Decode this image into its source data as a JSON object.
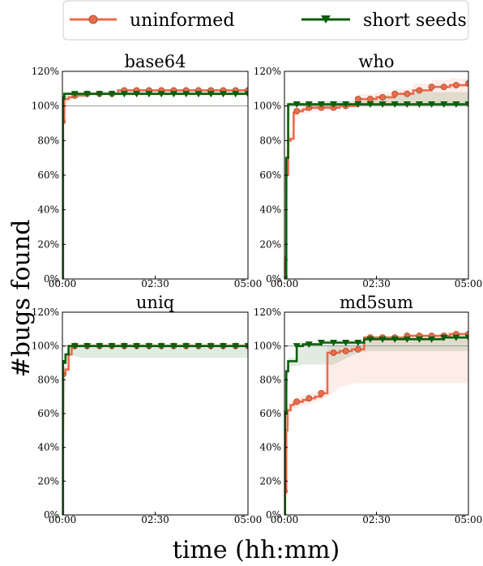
{
  "legend": {
    "placement": "top-center",
    "entries": [
      {
        "label": "uninformed",
        "color": "#ee6a4c",
        "marker": "circle"
      },
      {
        "label": "short seeds",
        "color": "#0b5e0b",
        "marker": "triangle-down"
      }
    ]
  },
  "xlabel": "time (hh:mm)",
  "ylabel": "#bugs found",
  "chart_data": [
    {
      "type": "line",
      "title": "base64",
      "xlim": [
        0,
        300
      ],
      "ylim": [
        0,
        120
      ],
      "xticks": [
        "00:00",
        "02:30",
        "05:00"
      ],
      "yticks": [
        "0%",
        "20%",
        "40%",
        "60%",
        "80%",
        "100%",
        "120%"
      ],
      "reference_line": 100,
      "series": [
        {
          "name": "uninformed",
          "color": "#ee6a4c",
          "x": [
            0,
            1,
            3,
            10,
            20,
            40,
            60,
            90,
            120,
            150,
            180,
            210,
            240,
            270,
            300
          ],
          "y": [
            0,
            91,
            104,
            105,
            106,
            107,
            107,
            109,
            109,
            109,
            109,
            109,
            109,
            109,
            109
          ],
          "band_low": [
            0,
            88,
            103,
            104,
            105,
            106,
            106,
            108,
            108,
            108,
            108,
            108,
            108,
            108,
            108
          ],
          "band_high": [
            0,
            92,
            105,
            106,
            107,
            108,
            108,
            110,
            110,
            110,
            110,
            110,
            110,
            110,
            110
          ]
        },
        {
          "name": "short seeds",
          "color": "#0b5e0b",
          "x": [
            0,
            1,
            3,
            10,
            20,
            40,
            60,
            90,
            120,
            150,
            180,
            210,
            240,
            270,
            300
          ],
          "y": [
            0,
            104,
            107,
            107,
            107,
            107,
            107,
            107,
            107,
            107,
            107,
            107,
            107,
            107,
            107
          ],
          "band_low": [
            0,
            103,
            106,
            106,
            106,
            106,
            106,
            106,
            106,
            106,
            106,
            106,
            106,
            106,
            106
          ],
          "band_high": [
            0,
            105,
            108,
            108,
            108,
            108,
            108,
            108,
            108,
            108,
            108,
            108,
            108,
            108,
            108
          ]
        }
      ]
    },
    {
      "type": "line",
      "title": "who",
      "xlim": [
        0,
        300
      ],
      "ylim": [
        0,
        120
      ],
      "xticks": [
        "00:00",
        "02:30",
        "05:00"
      ],
      "yticks": [
        "0%",
        "20%",
        "40%",
        "60%",
        "80%",
        "100%",
        "120%"
      ],
      "reference_line": 100,
      "series": [
        {
          "name": "uninformed",
          "color": "#ee6a4c",
          "x": [
            0,
            1,
            3,
            6,
            10,
            15,
            20,
            30,
            40,
            60,
            90,
            120,
            150,
            180,
            210,
            240,
            270,
            300
          ],
          "y": [
            0,
            11,
            60,
            80,
            81,
            96,
            97,
            98,
            99,
            99,
            100,
            104,
            105,
            107,
            109,
            111,
            112,
            113
          ],
          "band_low": [
            0,
            8,
            55,
            75,
            78,
            93,
            95,
            96,
            97,
            98,
            99,
            101,
            101,
            101,
            101,
            101,
            101,
            101
          ],
          "band_high": [
            0,
            14,
            65,
            85,
            84,
            98,
            99,
            100,
            101,
            101,
            102,
            107,
            108,
            110,
            113,
            115,
            116,
            117
          ]
        },
        {
          "name": "short seeds",
          "color": "#0b5e0b",
          "x": [
            0,
            1,
            3,
            6,
            10,
            20,
            40,
            60,
            90,
            120,
            150,
            180,
            210,
            240,
            270,
            300
          ],
          "y": [
            0,
            0,
            70,
            101,
            101,
            101,
            101,
            101,
            101,
            101,
            101,
            101,
            101,
            101,
            101,
            101
          ],
          "band_low": [
            0,
            0,
            65,
            100,
            100,
            100,
            100,
            100,
            100,
            100,
            100,
            100,
            100,
            100,
            100,
            100
          ],
          "band_high": [
            0,
            0,
            75,
            102,
            102,
            102,
            102,
            103,
            103,
            104,
            106,
            107,
            108,
            108,
            108,
            108
          ]
        }
      ]
    },
    {
      "type": "line",
      "title": "uniq",
      "xlim": [
        0,
        300
      ],
      "ylim": [
        0,
        120
      ],
      "xticks": [
        "00:00",
        "02:30",
        "05:00"
      ],
      "yticks": [
        "0%",
        "20%",
        "40%",
        "60%",
        "80%",
        "100%",
        "120%"
      ],
      "reference_line": 100,
      "series": [
        {
          "name": "uninformed",
          "color": "#ee6a4c",
          "x": [
            0,
            1,
            5,
            10,
            15,
            20,
            30,
            60,
            90,
            120,
            150,
            180,
            210,
            240,
            270,
            300
          ],
          "y": [
            0,
            83,
            86,
            95,
            100,
            100,
            100,
            100,
            100,
            100,
            100,
            100,
            100,
            100,
            100,
            100
          ],
          "band_low": [
            0,
            80,
            84,
            93,
            99,
            99,
            99,
            99,
            99,
            99,
            99,
            99,
            99,
            99,
            99,
            99
          ],
          "band_high": [
            0,
            85,
            88,
            97,
            101,
            101,
            101,
            101,
            101,
            101,
            101,
            101,
            101,
            101,
            101,
            101
          ]
        },
        {
          "name": "short seeds",
          "color": "#0b5e0b",
          "x": [
            0,
            1,
            5,
            10,
            20,
            30,
            60,
            90,
            120,
            150,
            180,
            210,
            240,
            270,
            300
          ],
          "y": [
            0,
            90,
            95,
            100,
            100,
            100,
            100,
            100,
            100,
            100,
            100,
            100,
            100,
            100,
            100
          ],
          "band_low": [
            0,
            88,
            93,
            95,
            93,
            93,
            93,
            93,
            93,
            93,
            93,
            93,
            93,
            93,
            93
          ],
          "band_high": [
            0,
            92,
            97,
            100,
            100,
            100,
            100,
            100,
            100,
            100,
            100,
            100,
            100,
            100,
            100
          ]
        }
      ]
    },
    {
      "type": "line",
      "title": "md5sum",
      "xlim": [
        0,
        300
      ],
      "ylim": [
        0,
        120
      ],
      "xticks": [
        "00:00",
        "02:30",
        "05:00"
      ],
      "yticks": [
        "0%",
        "20%",
        "40%",
        "60%",
        "80%",
        "100%",
        "120%"
      ],
      "reference_line": 100,
      "series": [
        {
          "name": "uninformed",
          "color": "#ee6a4c",
          "x": [
            0,
            1,
            3,
            5,
            10,
            15,
            20,
            30,
            40,
            50,
            60,
            65,
            70,
            90,
            110,
            120,
            130,
            140,
            160,
            180,
            200,
            210,
            220,
            240,
            260,
            270,
            280,
            300
          ],
          "y": [
            0,
            14,
            50,
            62,
            65,
            66,
            67,
            68,
            69,
            70,
            72,
            72,
            96,
            97,
            98,
            98,
            105,
            105,
            105,
            105,
            106,
            106,
            106,
            106,
            106,
            107,
            107,
            107
          ],
          "band_low": [
            0,
            10,
            45,
            58,
            62,
            63,
            64,
            65,
            66,
            67,
            69,
            69,
            75,
            76,
            78,
            78,
            78,
            78,
            78,
            78,
            78,
            78,
            78,
            78,
            78,
            78,
            78,
            78
          ],
          "band_high": [
            0,
            18,
            55,
            66,
            68,
            69,
            70,
            71,
            72,
            73,
            75,
            75,
            100,
            100,
            100,
            100,
            106,
            106,
            106,
            106,
            107,
            107,
            107,
            107,
            108,
            108,
            108,
            108
          ]
        },
        {
          "name": "short seeds",
          "color": "#0b5e0b",
          "x": [
            0,
            1,
            3,
            6,
            10,
            15,
            20,
            30,
            40,
            60,
            80,
            100,
            120,
            130,
            140,
            160,
            180,
            200,
            220,
            240,
            260,
            280,
            300
          ],
          "y": [
            0,
            60,
            85,
            91,
            91,
            91,
            100,
            101,
            101,
            102,
            102,
            102,
            102,
            104,
            104,
            104,
            104,
            104,
            104,
            104,
            105,
            105,
            105
          ],
          "band_low": [
            0,
            55,
            80,
            88,
            88,
            88,
            89,
            89,
            89,
            89,
            89,
            96,
            96,
            97,
            97,
            97,
            97,
            97,
            97,
            97,
            97,
            97,
            97
          ],
          "band_high": [
            0,
            65,
            88,
            93,
            93,
            93,
            101,
            102,
            102,
            103,
            103,
            103,
            103,
            105,
            105,
            105,
            105,
            105,
            105,
            105,
            106,
            106,
            106
          ]
        }
      ]
    }
  ]
}
